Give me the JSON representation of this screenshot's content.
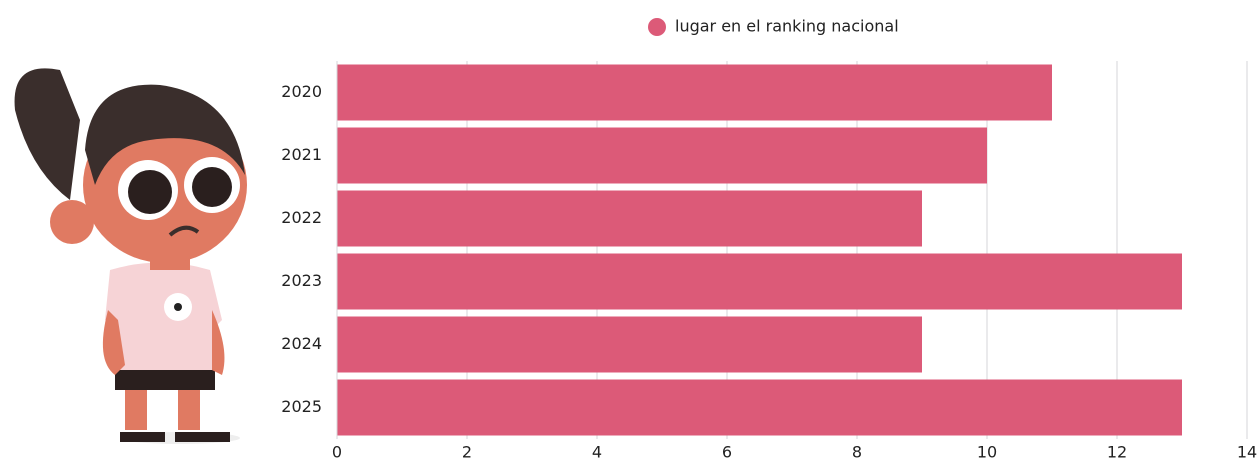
{
  "chart_data": {
    "type": "bar",
    "orientation": "horizontal",
    "categories": [
      "2020",
      "2021",
      "2022",
      "2023",
      "2024",
      "2025"
    ],
    "series": [
      {
        "name": "lugar en el ranking nacional",
        "color": "#dc5a78",
        "values": [
          11,
          10,
          9,
          13,
          9,
          13
        ]
      }
    ],
    "xlim": [
      0,
      14
    ],
    "xticks": [
      0,
      2,
      4,
      6,
      8,
      10,
      12,
      14
    ],
    "grid": true,
    "legend": "top"
  }
}
